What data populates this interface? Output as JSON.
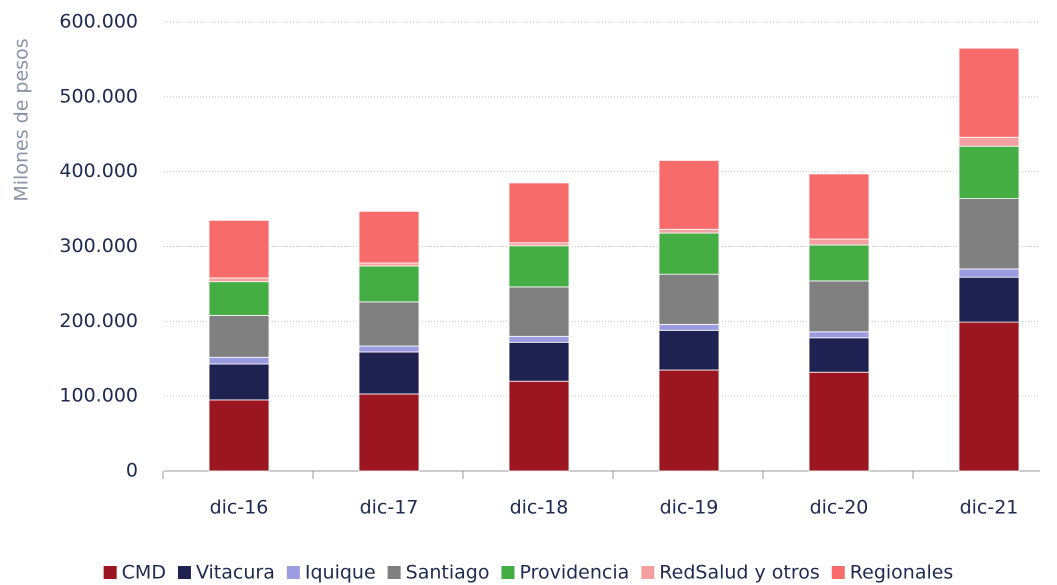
{
  "chart_data": {
    "type": "stacked_bar",
    "y_label": "Milones de pesos",
    "categories": [
      "dic-16",
      "dic-17",
      "dic-18",
      "dic-19",
      "dic-20",
      "dic-21"
    ],
    "series": [
      {
        "name": "CMD",
        "color": "#9b1620",
        "values": [
          95000,
          103000,
          120000,
          135000,
          132000,
          199000
        ]
      },
      {
        "name": "Vitacura",
        "color": "#1f2150",
        "values": [
          48000,
          56000,
          52000,
          53000,
          46000,
          60000
        ]
      },
      {
        "name": "Iquique",
        "color": "#9b9be0",
        "values": [
          9000,
          8000,
          8000,
          8000,
          8000,
          11000
        ]
      },
      {
        "name": "Santiago",
        "color": "#808080",
        "values": [
          56000,
          59000,
          66000,
          67000,
          68000,
          94000
        ]
      },
      {
        "name": "Providencia",
        "color": "#44ad44",
        "values": [
          45000,
          48000,
          55000,
          55000,
          48000,
          70000
        ]
      },
      {
        "name": "RedSalud y otros",
        "color": "#f4a0a0",
        "values": [
          5000,
          4000,
          4000,
          5000,
          8000,
          12000
        ]
      },
      {
        "name": "Regionales",
        "color": "#f86b6b",
        "values": [
          77000,
          69000,
          80000,
          92000,
          87000,
          119000
        ]
      }
    ],
    "ylim": [
      0,
      600000
    ],
    "yticks": [
      0,
      {
        "value": 100000,
        "label": "100.000"
      },
      {
        "value": 200000,
        "label": "200.000"
      },
      {
        "value": 300000,
        "label": "300.000"
      },
      {
        "value": 400000,
        "label": "400.000"
      },
      {
        "value": 500000,
        "label": "500.000"
      },
      {
        "value": 600000,
        "label": "600.000"
      }
    ],
    "grid": true,
    "legend": "bottom"
  }
}
